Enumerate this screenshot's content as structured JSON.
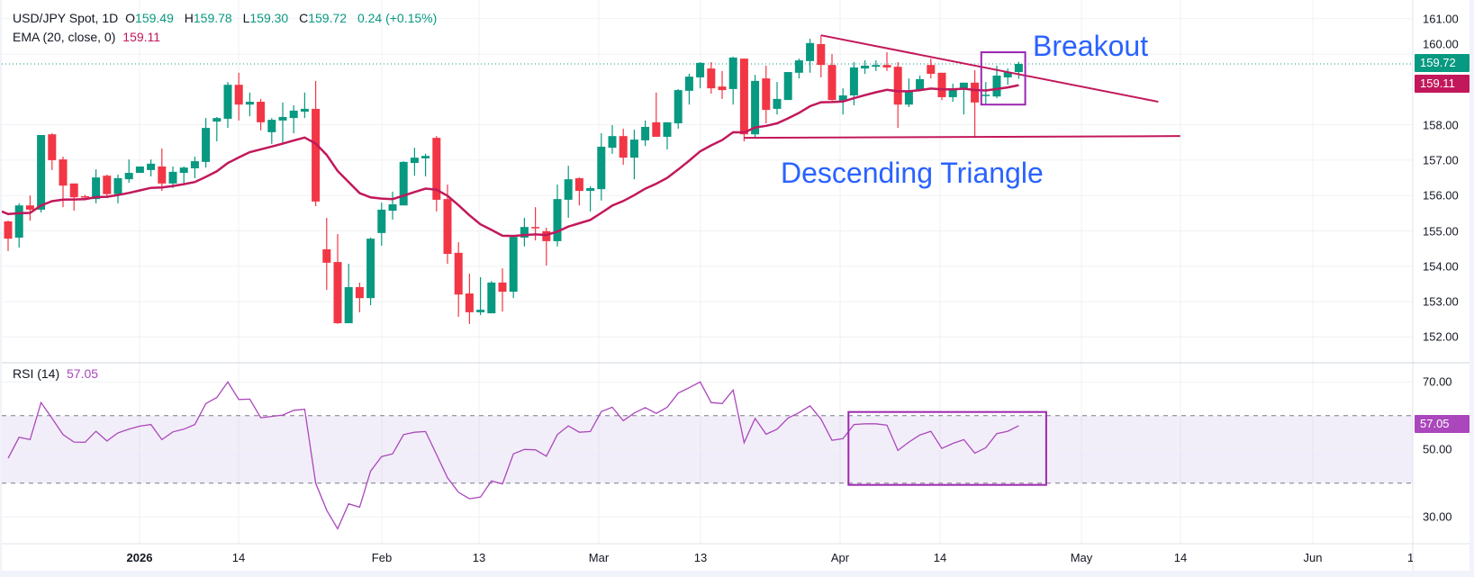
{
  "header": {
    "symbol": "USD/JPY Spot, 1D",
    "o_label": "O",
    "o_value": "159.49",
    "h_label": "H",
    "h_value": "159.78",
    "l_label": "L",
    "l_value": "159.30",
    "c_label": "C",
    "c_value": "159.72",
    "change": "0.24 (+0.15%)",
    "ema_label": "EMA (20, close, 0)",
    "ema_value": "159.11",
    "rsi_label": "RSI (14)",
    "rsi_value": "57.05"
  },
  "annotations": {
    "breakout": "Breakout",
    "pattern": "Descending Triangle"
  },
  "price_tags": {
    "last": "159.72",
    "ema": "159.11",
    "rsi": "57.05"
  },
  "colors": {
    "up": "#089981",
    "down": "#f23645",
    "ema": "#c2185b",
    "rsi": "#ab47bc",
    "box": "#9c27b0",
    "annotation": "#2962ff"
  },
  "chart_data": {
    "type": "candlestick",
    "title": "USD/JPY Spot, 1D",
    "x_tick_labels": [
      "2026",
      "14",
      "Feb",
      "13",
      "Mar",
      "13",
      "Apr",
      "14",
      "May",
      "14",
      "Jun",
      "1:"
    ],
    "price_axis": {
      "ticks": [
        "161.00",
        "160.00",
        "158.00",
        "157.00",
        "156.00",
        "155.00",
        "154.00",
        "153.00",
        "152.00"
      ],
      "range": [
        151.6,
        161.5
      ]
    },
    "rsi_axis": {
      "ticks": [
        "70.00",
        "50.00",
        "30.00"
      ],
      "upper_band": 60,
      "lower_band": 40
    },
    "ema_period": 20,
    "ema_initial": 155.55,
    "ohlc": [
      [
        155.27,
        155.29,
        154.43,
        154.78
      ],
      [
        154.81,
        155.78,
        154.53,
        155.72
      ],
      [
        155.72,
        156.0,
        155.29,
        155.6
      ],
      [
        155.6,
        157.71,
        155.52,
        157.71
      ],
      [
        157.73,
        157.76,
        156.72,
        157.0
      ],
      [
        157.02,
        157.1,
        155.67,
        156.28
      ],
      [
        156.34,
        156.34,
        155.57,
        155.95
      ],
      [
        155.98,
        156.02,
        155.93,
        155.97
      ],
      [
        155.9,
        156.74,
        155.78,
        156.51
      ],
      [
        156.56,
        156.59,
        155.93,
        156.04
      ],
      [
        156.04,
        156.59,
        155.78,
        156.49
      ],
      [
        156.46,
        157.02,
        156.36,
        156.64
      ],
      [
        156.64,
        156.82,
        156.64,
        156.82
      ],
      [
        156.72,
        157.02,
        156.54,
        156.9
      ],
      [
        156.82,
        157.33,
        156.13,
        156.34
      ],
      [
        156.34,
        156.82,
        156.21,
        156.67
      ],
      [
        156.64,
        156.82,
        156.31,
        156.79
      ],
      [
        156.77,
        157.1,
        156.49,
        156.97
      ],
      [
        156.95,
        158.19,
        156.79,
        157.91
      ],
      [
        158.09,
        158.22,
        157.53,
        158.19
      ],
      [
        158.17,
        159.21,
        157.91,
        159.13
      ],
      [
        159.13,
        159.47,
        158.12,
        158.57
      ],
      [
        158.57,
        158.91,
        158.24,
        158.65
      ],
      [
        158.65,
        158.73,
        157.84,
        158.07
      ],
      [
        157.79,
        158.19,
        157.46,
        158.14
      ],
      [
        158.12,
        158.63,
        157.48,
        158.22
      ],
      [
        158.19,
        158.55,
        157.76,
        158.4
      ],
      [
        158.37,
        158.91,
        158.19,
        158.45
      ],
      [
        158.45,
        159.24,
        155.7,
        155.83
      ],
      [
        154.48,
        155.37,
        153.33,
        154.1
      ],
      [
        154.12,
        154.91,
        152.37,
        152.39
      ],
      [
        152.39,
        154.07,
        152.39,
        153.41
      ],
      [
        153.41,
        153.54,
        152.7,
        153.1
      ],
      [
        153.1,
        154.81,
        152.9,
        154.78
      ],
      [
        154.94,
        155.8,
        154.58,
        155.6
      ],
      [
        155.57,
        156.11,
        155.32,
        155.75
      ],
      [
        155.72,
        156.97,
        155.72,
        156.95
      ],
      [
        156.92,
        157.35,
        156.56,
        157.07
      ],
      [
        157.05,
        157.18,
        156.54,
        157.12
      ],
      [
        157.63,
        157.68,
        155.55,
        155.88
      ],
      [
        155.9,
        156.31,
        154.07,
        154.35
      ],
      [
        154.38,
        154.68,
        152.57,
        153.2
      ],
      [
        153.23,
        153.79,
        152.37,
        152.7
      ],
      [
        152.7,
        153.69,
        152.62,
        152.77
      ],
      [
        152.67,
        153.58,
        152.67,
        153.54
      ],
      [
        153.54,
        153.94,
        152.72,
        153.28
      ],
      [
        153.28,
        154.88,
        153.1,
        154.83
      ],
      [
        154.81,
        155.37,
        154.56,
        155.11
      ],
      [
        155.11,
        155.67,
        154.73,
        155.08
      ],
      [
        154.99,
        155.09,
        154.02,
        154.71
      ],
      [
        154.71,
        156.31,
        154.56,
        155.9
      ],
      [
        155.88,
        156.84,
        155.37,
        156.46
      ],
      [
        156.49,
        156.51,
        155.72,
        156.13
      ],
      [
        156.13,
        156.26,
        155.55,
        156.21
      ],
      [
        156.18,
        157.76,
        155.86,
        157.38
      ],
      [
        157.35,
        157.99,
        157.18,
        157.68
      ],
      [
        157.68,
        157.89,
        156.87,
        157.07
      ],
      [
        157.07,
        157.86,
        156.46,
        157.58
      ],
      [
        157.56,
        158.12,
        157.4,
        157.94
      ],
      [
        158.07,
        158.91,
        157.66,
        157.66
      ],
      [
        157.66,
        158.07,
        157.3,
        158.07
      ],
      [
        158.04,
        159.01,
        157.89,
        158.98
      ],
      [
        158.96,
        159.44,
        158.57,
        159.36
      ],
      [
        159.34,
        159.77,
        159.03,
        159.75
      ],
      [
        159.59,
        159.77,
        158.88,
        159.03
      ],
      [
        159.08,
        159.52,
        158.73,
        158.98
      ],
      [
        159.01,
        159.92,
        158.57,
        159.9
      ],
      [
        159.87,
        159.87,
        157.53,
        157.73
      ],
      [
        157.73,
        159.41,
        157.61,
        159.24
      ],
      [
        159.31,
        159.67,
        158.04,
        158.42
      ],
      [
        158.45,
        159.21,
        158.29,
        158.73
      ],
      [
        158.7,
        159.49,
        158.7,
        159.49
      ],
      [
        159.47,
        159.87,
        159.31,
        159.82
      ],
      [
        159.8,
        160.43,
        159.47,
        160.31
      ],
      [
        160.28,
        160.53,
        159.34,
        159.69
      ],
      [
        159.69,
        160.0,
        158.68,
        158.7
      ],
      [
        158.68,
        159.03,
        158.29,
        158.83
      ],
      [
        158.83,
        159.77,
        158.55,
        159.62
      ],
      [
        159.59,
        159.82,
        159.44,
        159.67
      ],
      [
        159.64,
        159.82,
        159.52,
        159.69
      ],
      [
        159.69,
        160.05,
        159.52,
        159.62
      ],
      [
        159.64,
        159.77,
        157.91,
        158.57
      ],
      [
        158.57,
        159.31,
        158.5,
        158.96
      ],
      [
        158.96,
        159.39,
        158.94,
        159.29
      ],
      [
        159.69,
        159.87,
        159.31,
        159.44
      ],
      [
        159.47,
        159.47,
        158.7,
        158.78
      ],
      [
        158.78,
        159.16,
        158.65,
        159.01
      ],
      [
        159.01,
        159.19,
        158.29,
        159.19
      ],
      [
        159.19,
        159.54,
        157.63,
        158.63
      ],
      [
        158.82,
        159.21,
        158.55,
        158.85
      ],
      [
        158.8,
        159.67,
        158.75,
        159.39
      ],
      [
        159.34,
        159.59,
        159.13,
        159.49
      ],
      [
        159.49,
        159.78,
        159.3,
        159.72
      ]
    ],
    "rsi": [
      47.4,
      53.6,
      52.9,
      63.9,
      59.2,
      54.4,
      52.2,
      52.1,
      55.4,
      52.5,
      54.9,
      56.0,
      56.9,
      57.4,
      52.9,
      55.2,
      56.0,
      57.4,
      63.6,
      65.4,
      70.0,
      64.8,
      64.9,
      59.4,
      59.8,
      60.2,
      61.6,
      61.9,
      40.0,
      32.0,
      26.5,
      33.9,
      32.9,
      43.6,
      47.9,
      48.7,
      54.4,
      55.1,
      55.3,
      48.5,
      41.6,
      37.3,
      35.4,
      35.9,
      40.7,
      39.8,
      48.7,
      50.0,
      49.9,
      48.0,
      54.4,
      57.0,
      55.1,
      55.3,
      61.2,
      62.5,
      58.5,
      60.8,
      62.4,
      60.7,
      62.5,
      66.7,
      68.3,
      70.0,
      63.9,
      63.6,
      67.6,
      52.0,
      59.2,
      54.5,
      56.0,
      59.3,
      60.9,
      62.9,
      59.0,
      52.7,
      53.2,
      57.4,
      57.6,
      57.6,
      57.2,
      49.7,
      52.2,
      54.3,
      55.4,
      50.3,
      51.8,
      52.9,
      48.9,
      50.5,
      54.7,
      55.4,
      57.05
    ],
    "drawings": {
      "resistance_line": {
        "from": {
          "bar": 75,
          "price": 160.53
        },
        "to": {
          "bar": 105.7,
          "price": 158.65
        }
      },
      "support_line": {
        "from": {
          "bar": 68,
          "price": 157.63
        },
        "to": {
          "bar": 107.7,
          "price": 157.68
        }
      },
      "price_box": {
        "bars": [
          90,
          94
        ],
        "prices": [
          158.57,
          160.05
        ]
      },
      "rsi_box": {
        "bars": [
          77.5,
          95.5
        ],
        "values": [
          61.1,
          39.5
        ]
      }
    }
  }
}
